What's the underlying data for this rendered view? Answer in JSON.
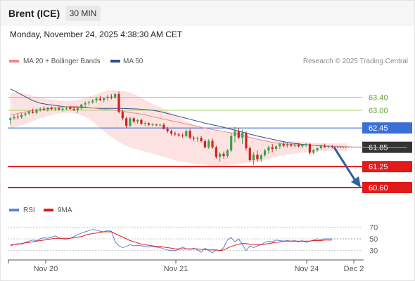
{
  "header": {
    "instrument": "Brent (ICE)",
    "timeframe": "30 MIN",
    "datetime": "Monday, November 24, 2025 4:38:30 AM CET"
  },
  "legend": {
    "items": [
      {
        "label": "MA 20 + Bollinger Bands",
        "color": "#f08a8a"
      },
      {
        "label": "MA 50",
        "color": "#30508c"
      }
    ],
    "credit": "Research © 2025 Trading Central"
  },
  "rsi_legend": {
    "items": [
      {
        "label": "RSI",
        "color": "#5a84d8"
      },
      {
        "label": "9MA",
        "color": "#e21a1a"
      }
    ]
  },
  "colors": {
    "bull": "#3aa14a",
    "bear": "#d21f1f",
    "support": "#e21a1a",
    "pivot": "#3b6fd8",
    "resistance": "#a6d46e",
    "ma50": "#30508c",
    "ma20": "#f08a8a",
    "band_fill": "#fde2e2",
    "arrow": "#2f5f9e"
  },
  "chart_data": [
    {
      "type": "candlestick",
      "x_ticks": [
        "Nov 20",
        "Nov 21",
        "Nov 24",
        "Dec 2"
      ],
      "ylim": [
        60.25,
        63.85
      ],
      "price_levels": [
        {
          "label": "63.40",
          "value": 63.4,
          "kind": "resistance"
        },
        {
          "label": "63.00",
          "value": 63.0,
          "kind": "resistance"
        },
        {
          "label": "62.45",
          "value": 62.45,
          "kind": "pivot"
        },
        {
          "label": "61.85",
          "value": 61.85,
          "kind": "last"
        },
        {
          "label": "61.25",
          "value": 61.25,
          "kind": "support"
        },
        {
          "label": "60.60",
          "value": 60.6,
          "kind": "support"
        }
      ],
      "candles": [
        [
          62.7,
          62.8,
          62.55,
          62.75
        ],
        [
          62.75,
          62.85,
          62.7,
          62.8
        ],
        [
          62.8,
          62.88,
          62.72,
          62.78
        ],
        [
          62.78,
          62.92,
          62.74,
          62.86
        ],
        [
          62.86,
          62.95,
          62.8,
          62.9
        ],
        [
          62.9,
          63.0,
          62.85,
          62.96
        ],
        [
          62.96,
          63.05,
          62.9,
          62.92
        ],
        [
          62.92,
          63.05,
          62.88,
          63.02
        ],
        [
          63.02,
          63.1,
          62.96,
          63.05
        ],
        [
          63.05,
          63.12,
          62.98,
          63.02
        ],
        [
          63.02,
          63.1,
          62.96,
          63.08
        ],
        [
          63.08,
          63.12,
          63.0,
          63.04
        ],
        [
          63.04,
          63.1,
          62.98,
          63.06
        ],
        [
          63.06,
          63.12,
          63.0,
          63.02
        ],
        [
          63.02,
          63.08,
          62.96,
          63.05
        ],
        [
          63.05,
          63.12,
          63.0,
          63.08
        ],
        [
          63.08,
          63.14,
          63.02,
          63.04
        ],
        [
          63.04,
          63.1,
          62.98,
          63.0
        ],
        [
          63.0,
          63.08,
          62.92,
          63.06
        ],
        [
          63.06,
          63.2,
          63.02,
          63.18
        ],
        [
          63.18,
          63.28,
          63.1,
          63.22
        ],
        [
          63.22,
          63.3,
          63.16,
          63.25
        ],
        [
          63.25,
          63.35,
          63.2,
          63.3
        ],
        [
          63.3,
          63.42,
          63.22,
          63.36
        ],
        [
          63.36,
          63.45,
          63.28,
          63.32
        ],
        [
          63.32,
          63.4,
          63.24,
          63.38
        ],
        [
          63.38,
          63.48,
          63.3,
          63.42
        ],
        [
          63.42,
          63.5,
          63.34,
          63.4
        ],
        [
          63.4,
          63.55,
          63.35,
          63.5
        ],
        [
          63.5,
          63.58,
          62.9,
          62.95
        ],
        [
          62.95,
          63.02,
          62.7,
          62.75
        ],
        [
          62.75,
          62.8,
          62.45,
          62.52
        ],
        [
          62.52,
          62.8,
          62.48,
          62.75
        ],
        [
          62.75,
          62.8,
          62.6,
          62.65
        ],
        [
          62.65,
          62.72,
          62.58,
          62.7
        ],
        [
          62.7,
          62.74,
          62.55,
          62.58
        ],
        [
          62.58,
          62.66,
          62.52,
          62.6
        ],
        [
          62.6,
          62.62,
          62.52,
          62.55
        ],
        [
          62.55,
          62.6,
          62.5,
          62.56
        ],
        [
          62.56,
          62.58,
          62.5,
          62.54
        ],
        [
          62.54,
          62.58,
          62.5,
          62.55
        ],
        [
          62.55,
          62.6,
          62.4,
          62.42
        ],
        [
          62.42,
          62.48,
          62.3,
          62.35
        ],
        [
          62.35,
          62.4,
          62.22,
          62.28
        ],
        [
          62.28,
          62.34,
          62.2,
          62.25
        ],
        [
          62.25,
          62.3,
          62.18,
          62.22
        ],
        [
          62.22,
          62.28,
          62.15,
          62.2
        ],
        [
          62.2,
          62.4,
          62.16,
          62.36
        ],
        [
          62.36,
          62.42,
          62.1,
          62.15
        ],
        [
          62.15,
          62.2,
          62.05,
          62.12
        ],
        [
          62.12,
          62.18,
          62.02,
          62.14
        ],
        [
          62.14,
          62.2,
          62.0,
          62.04
        ],
        [
          62.04,
          62.1,
          61.82,
          61.85
        ],
        [
          61.85,
          62.1,
          61.8,
          62.05
        ],
        [
          62.05,
          62.12,
          61.8,
          61.85
        ],
        [
          61.85,
          61.9,
          61.5,
          61.55
        ],
        [
          61.55,
          61.7,
          61.4,
          61.65
        ],
        [
          61.65,
          61.72,
          61.5,
          61.58
        ],
        [
          61.58,
          61.8,
          61.52,
          61.75
        ],
        [
          61.75,
          62.3,
          61.7,
          62.2
        ],
        [
          62.2,
          62.48,
          62.0,
          62.35
        ],
        [
          62.35,
          62.45,
          62.1,
          62.15
        ],
        [
          62.15,
          62.4,
          61.95,
          62.3
        ],
        [
          62.3,
          62.35,
          61.75,
          61.82
        ],
        [
          61.82,
          61.88,
          61.4,
          61.45
        ],
        [
          61.45,
          61.7,
          61.3,
          61.62
        ],
        [
          61.62,
          61.75,
          61.4,
          61.48
        ],
        [
          61.48,
          61.65,
          61.4,
          61.6
        ],
        [
          61.6,
          61.8,
          61.55,
          61.75
        ],
        [
          61.75,
          61.9,
          61.65,
          61.85
        ],
        [
          61.85,
          61.95,
          61.7,
          61.8
        ],
        [
          61.8,
          61.92,
          61.74,
          61.88
        ],
        [
          61.88,
          62.0,
          61.8,
          61.95
        ],
        [
          61.95,
          62.02,
          61.85,
          61.9
        ],
        [
          61.9,
          61.98,
          61.84,
          61.94
        ],
        [
          61.94,
          61.98,
          61.86,
          61.9
        ],
        [
          61.9,
          61.96,
          61.84,
          61.93
        ],
        [
          61.93,
          61.98,
          61.85,
          61.88
        ],
        [
          61.88,
          61.95,
          61.82,
          61.92
        ],
        [
          61.92,
          61.98,
          61.86,
          61.95
        ],
        [
          61.95,
          61.98,
          61.62,
          61.68
        ],
        [
          61.68,
          61.8,
          61.62,
          61.76
        ],
        [
          61.76,
          61.85,
          61.7,
          61.82
        ],
        [
          61.82,
          61.94,
          61.78,
          61.9
        ],
        [
          61.9,
          61.96,
          61.82,
          61.86
        ],
        [
          61.86,
          61.92,
          61.82,
          61.88
        ],
        [
          61.88,
          61.92,
          61.82,
          61.85
        ]
      ],
      "ma20": [
        62.85,
        62.9,
        62.95,
        62.99,
        63.02,
        63.05,
        63.08,
        63.1,
        63.12,
        63.12,
        63.1,
        63.07,
        63.04,
        63.02,
        63.0,
        62.97,
        62.93,
        62.9,
        62.86,
        62.8,
        62.75,
        62.7,
        62.65,
        62.6,
        62.55,
        62.5,
        62.45,
        62.4,
        62.36,
        62.32,
        62.28,
        62.22,
        62.16,
        62.1,
        62.05,
        62.0,
        61.97,
        61.95,
        61.93,
        61.92,
        61.92,
        61.91,
        61.9,
        61.88,
        61.88,
        61.87,
        61.86,
        61.86,
        61.85,
        61.85,
        61.85,
        61.85,
        61.85,
        61.85
      ],
      "ma20_x": [
        0,
        2,
        4,
        6,
        8,
        10,
        12,
        14,
        16,
        18,
        20,
        22,
        24,
        26,
        28,
        30,
        32,
        34,
        36,
        38,
        40,
        42,
        44,
        46,
        48,
        50,
        52,
        54,
        56,
        58,
        60,
        62,
        64,
        66,
        68,
        70,
        72,
        74,
        76,
        78,
        80,
        82,
        84,
        86,
        88,
        90,
        92,
        94,
        96,
        98,
        100,
        102,
        104,
        106
      ],
      "ma50": [
        63.66,
        63.55,
        63.42,
        63.3,
        63.22,
        63.18,
        63.15,
        63.12,
        63.1,
        63.09,
        63.08,
        63.07,
        63.06,
        63.06,
        63.06,
        63.06,
        63.05,
        63.04,
        63.02,
        63.0,
        62.96,
        62.9,
        62.84,
        62.78,
        62.72,
        62.66,
        62.6,
        62.55,
        62.5,
        62.44,
        62.38,
        62.32,
        62.26,
        62.2,
        62.15,
        62.1,
        62.05,
        62.0,
        61.97,
        61.94,
        61.92,
        61.9,
        61.89,
        61.88,
        61.87,
        61.87
      ],
      "ma50_x": [
        0,
        2,
        4,
        6,
        8,
        10,
        12,
        14,
        16,
        18,
        20,
        22,
        24,
        26,
        28,
        30,
        32,
        34,
        36,
        38,
        40,
        42,
        44,
        46,
        48,
        50,
        52,
        54,
        56,
        58,
        60,
        62,
        64,
        66,
        68,
        70,
        72,
        74,
        76,
        78,
        80,
        82,
        84,
        86,
        88,
        90
      ],
      "bb_upper": [
        63.55,
        63.55,
        63.52,
        63.45,
        63.4,
        63.35,
        63.32,
        63.3,
        63.3,
        63.32,
        63.38,
        63.45,
        63.55,
        63.62,
        63.62,
        63.6,
        63.55,
        63.45,
        63.32,
        63.2,
        63.1,
        62.98,
        62.85,
        62.72,
        62.6,
        62.5,
        62.42,
        62.38,
        62.35,
        62.33,
        62.3,
        62.25,
        62.18,
        62.12,
        62.08,
        62.05,
        62.04,
        62.04,
        62.04,
        62.02,
        62.0,
        61.99,
        61.98,
        61.97,
        61.97,
        61.97
      ],
      "bb_lower": [
        62.45,
        62.5,
        62.58,
        62.66,
        62.75,
        62.82,
        62.88,
        62.92,
        62.92,
        62.88,
        62.8,
        62.65,
        62.45,
        62.25,
        62.08,
        61.95,
        61.85,
        61.78,
        61.72,
        61.65,
        61.58,
        61.52,
        61.45,
        61.4,
        61.36,
        61.33,
        61.3,
        61.28,
        61.28,
        61.3,
        61.32,
        61.35,
        61.38,
        61.4,
        61.45,
        61.52,
        61.58,
        61.62,
        61.65,
        61.68,
        61.71,
        61.73,
        61.74,
        61.74,
        61.74,
        61.74
      ],
      "bb_x": [
        0,
        2,
        4,
        6,
        8,
        10,
        12,
        14,
        16,
        18,
        20,
        22,
        24,
        26,
        28,
        30,
        32,
        34,
        36,
        38,
        40,
        42,
        44,
        46,
        48,
        50,
        52,
        54,
        56,
        58,
        60,
        62,
        64,
        66,
        68,
        70,
        72,
        74,
        76,
        78,
        80,
        82,
        84,
        86,
        88,
        90
      ],
      "forecast": {
        "from": 61.85,
        "to": 60.6
      }
    },
    {
      "type": "line",
      "title": "RSI",
      "y_ticks": [
        70,
        50,
        30
      ],
      "ylim": [
        20,
        80
      ],
      "series": [
        {
          "name": "RSI",
          "values": [
            38,
            40,
            42,
            41,
            44,
            46,
            48,
            47,
            50,
            52,
            51,
            53,
            55,
            52,
            50,
            49,
            51,
            54,
            57,
            60,
            62,
            64,
            66,
            65,
            63,
            62,
            64,
            63,
            45,
            38,
            35,
            37,
            40,
            38,
            39,
            38,
            37,
            36,
            37,
            36,
            35,
            33,
            31,
            30,
            30,
            32,
            36,
            33,
            32,
            34,
            31,
            27,
            34,
            30,
            26,
            31,
            30,
            35,
            48,
            52,
            45,
            50,
            40,
            30,
            38,
            35,
            38,
            40,
            44,
            46,
            45,
            48,
            47,
            46,
            47,
            46,
            47,
            45,
            47,
            44,
            46,
            48,
            50,
            49,
            50,
            50,
            50
          ]
        },
        {
          "name": "9MA",
          "values": [
            40,
            40,
            41,
            42,
            43,
            44,
            45,
            46,
            47,
            48,
            49,
            50,
            51,
            51,
            51,
            51,
            51,
            52,
            53,
            54,
            56,
            58,
            59,
            60,
            61,
            62,
            62,
            62,
            59,
            56,
            53,
            50,
            47,
            45,
            43,
            41,
            40,
            39,
            38,
            37,
            37,
            36,
            35,
            34,
            33,
            33,
            33,
            33,
            33,
            33,
            33,
            32,
            32,
            31,
            31,
            31,
            30,
            31,
            34,
            37,
            39,
            41,
            42,
            42,
            41,
            40,
            40,
            40,
            41,
            42,
            43,
            44,
            45,
            46,
            46,
            46,
            46,
            46,
            46,
            46,
            46,
            47,
            47,
            47,
            48,
            48,
            48
          ]
        }
      ]
    }
  ]
}
